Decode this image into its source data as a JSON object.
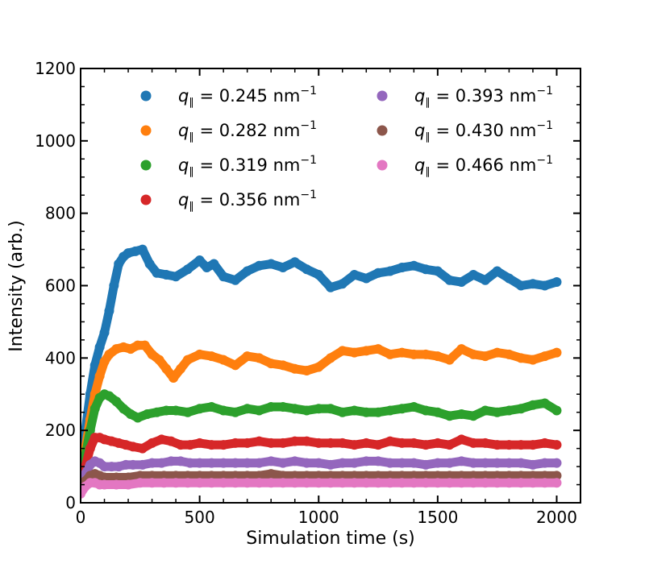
{
  "chart_data": {
    "type": "scatter",
    "title": "",
    "xlabel": "Simulation time (s)",
    "ylabel": "Intensity (arb.)",
    "xlim": [
      0,
      2100
    ],
    "ylim": [
      0,
      1200
    ],
    "xticks": [
      0,
      500,
      1000,
      1500,
      2000
    ],
    "yticks": [
      0,
      200,
      400,
      600,
      800,
      1000,
      1200
    ],
    "legend_position": "top",
    "series": [
      {
        "name": "q_∥ = 0.245 nm⁻¹",
        "q": "0.245",
        "color": "#1f77b4",
        "x": [
          0,
          20,
          40,
          60,
          80,
          100,
          120,
          140,
          160,
          180,
          200,
          230,
          260,
          290,
          320,
          360,
          400,
          450,
          500,
          530,
          560,
          600,
          650,
          700,
          750,
          800,
          850,
          900,
          950,
          1000,
          1050,
          1100,
          1150,
          1200,
          1250,
          1300,
          1350,
          1400,
          1450,
          1500,
          1550,
          1600,
          1650,
          1700,
          1750,
          1800,
          1850,
          1900,
          1950,
          2000
        ],
        "y": [
          80,
          200,
          300,
          380,
          430,
          470,
          530,
          600,
          660,
          680,
          690,
          695,
          700,
          660,
          635,
          630,
          625,
          645,
          670,
          650,
          660,
          625,
          615,
          640,
          655,
          660,
          650,
          665,
          645,
          630,
          595,
          605,
          630,
          620,
          635,
          640,
          650,
          655,
          645,
          640,
          615,
          610,
          630,
          615,
          640,
          620,
          600,
          605,
          600,
          610
        ]
      },
      {
        "name": "q_∥ = 0.282 nm⁻¹",
        "q": "0.282",
        "color": "#ff7f0e",
        "x": [
          0,
          20,
          40,
          60,
          80,
          100,
          120,
          150,
          180,
          210,
          240,
          270,
          300,
          330,
          360,
          390,
          420,
          450,
          500,
          550,
          600,
          650,
          700,
          750,
          800,
          850,
          900,
          950,
          1000,
          1050,
          1100,
          1150,
          1200,
          1250,
          1300,
          1350,
          1400,
          1450,
          1500,
          1550,
          1600,
          1650,
          1700,
          1750,
          1800,
          1850,
          1900,
          1950,
          2000
        ],
        "y": [
          60,
          150,
          230,
          300,
          350,
          390,
          410,
          425,
          430,
          425,
          435,
          435,
          410,
          395,
          370,
          345,
          370,
          395,
          410,
          405,
          395,
          380,
          405,
          400,
          385,
          380,
          370,
          365,
          375,
          400,
          420,
          415,
          420,
          425,
          410,
          415,
          410,
          410,
          405,
          395,
          425,
          410,
          405,
          415,
          410,
          400,
          395,
          405,
          415
        ]
      },
      {
        "name": "q_∥ = 0.319 nm⁻¹",
        "q": "0.319",
        "color": "#2ca02c",
        "x": [
          0,
          20,
          40,
          60,
          80,
          100,
          120,
          150,
          180,
          210,
          240,
          280,
          320,
          360,
          400,
          450,
          500,
          550,
          600,
          650,
          700,
          750,
          800,
          850,
          900,
          950,
          1000,
          1050,
          1100,
          1150,
          1200,
          1250,
          1300,
          1350,
          1400,
          1450,
          1500,
          1550,
          1600,
          1650,
          1700,
          1750,
          1800,
          1850,
          1900,
          1950,
          2000
        ],
        "y": [
          50,
          130,
          200,
          260,
          290,
          300,
          295,
          280,
          260,
          245,
          235,
          245,
          250,
          255,
          255,
          250,
          260,
          265,
          255,
          250,
          260,
          255,
          265,
          265,
          260,
          255,
          260,
          260,
          250,
          255,
          250,
          250,
          255,
          260,
          265,
          255,
          250,
          240,
          245,
          240,
          255,
          250,
          255,
          260,
          270,
          275,
          255
        ]
      },
      {
        "name": "q_∥ = 0.356 nm⁻¹",
        "q": "0.356",
        "color": "#d62728",
        "x": [
          0,
          20,
          40,
          60,
          80,
          100,
          130,
          160,
          190,
          220,
          260,
          300,
          340,
          380,
          420,
          460,
          500,
          550,
          600,
          650,
          700,
          750,
          800,
          850,
          900,
          950,
          1000,
          1050,
          1100,
          1150,
          1200,
          1250,
          1300,
          1350,
          1400,
          1450,
          1500,
          1550,
          1600,
          1650,
          1700,
          1750,
          1800,
          1850,
          1900,
          1950,
          2000
        ],
        "y": [
          40,
          100,
          150,
          180,
          180,
          175,
          170,
          165,
          160,
          155,
          150,
          165,
          175,
          170,
          160,
          160,
          165,
          160,
          160,
          165,
          165,
          170,
          165,
          165,
          170,
          170,
          165,
          165,
          165,
          160,
          165,
          160,
          170,
          165,
          165,
          160,
          165,
          160,
          175,
          165,
          165,
          160,
          160,
          160,
          160,
          165,
          160
        ]
      },
      {
        "name": "q_∥ = 0.393 nm⁻¹",
        "q": "0.393",
        "color": "#9467bd",
        "x": [
          0,
          20,
          40,
          60,
          80,
          100,
          130,
          160,
          190,
          220,
          260,
          300,
          340,
          380,
          420,
          460,
          500,
          550,
          600,
          650,
          700,
          750,
          800,
          850,
          900,
          950,
          1000,
          1050,
          1100,
          1150,
          1200,
          1250,
          1300,
          1350,
          1400,
          1450,
          1500,
          1550,
          1600,
          1650,
          1700,
          1750,
          1800,
          1850,
          1900,
          1950,
          2000
        ],
        "y": [
          35,
          80,
          105,
          115,
          110,
          100,
          100,
          100,
          105,
          105,
          105,
          110,
          110,
          115,
          115,
          110,
          110,
          110,
          110,
          110,
          110,
          110,
          115,
          110,
          115,
          110,
          110,
          105,
          110,
          110,
          115,
          115,
          110,
          110,
          110,
          105,
          110,
          110,
          115,
          110,
          110,
          110,
          110,
          110,
          105,
          110,
          110
        ]
      },
      {
        "name": "q_∥ = 0.430 nm⁻¹",
        "q": "0.430",
        "color": "#8c564b",
        "x": [
          0,
          20,
          40,
          60,
          80,
          100,
          150,
          200,
          250,
          300,
          350,
          400,
          450,
          500,
          550,
          600,
          650,
          700,
          750,
          800,
          850,
          900,
          950,
          1000,
          1050,
          1100,
          1150,
          1200,
          1250,
          1300,
          1350,
          1400,
          1450,
          1500,
          1550,
          1600,
          1650,
          1700,
          1750,
          1800,
          1850,
          1900,
          1950,
          2000
        ],
        "y": [
          30,
          60,
          75,
          80,
          75,
          70,
          70,
          70,
          75,
          75,
          75,
          75,
          75,
          75,
          75,
          75,
          75,
          75,
          75,
          80,
          75,
          75,
          75,
          75,
          75,
          75,
          75,
          75,
          75,
          75,
          75,
          75,
          75,
          75,
          75,
          75,
          75,
          75,
          75,
          75,
          75,
          75,
          75,
          75
        ]
      },
      {
        "name": "q_∥ = 0.466 nm⁻¹",
        "q": "0.466",
        "color": "#e377c2",
        "x": [
          0,
          20,
          40,
          60,
          80,
          100,
          150,
          200,
          250,
          300,
          350,
          400,
          450,
          500,
          550,
          600,
          650,
          700,
          750,
          800,
          850,
          900,
          950,
          1000,
          1050,
          1100,
          1150,
          1200,
          1250,
          1300,
          1350,
          1400,
          1450,
          1500,
          1550,
          1600,
          1650,
          1700,
          1750,
          1800,
          1850,
          1900,
          1950,
          2000
        ],
        "y": [
          25,
          45,
          55,
          55,
          50,
          50,
          50,
          50,
          55,
          55,
          55,
          55,
          55,
          55,
          55,
          55,
          55,
          55,
          55,
          55,
          55,
          55,
          55,
          55,
          55,
          55,
          55,
          55,
          55,
          55,
          55,
          55,
          55,
          55,
          55,
          55,
          55,
          55,
          55,
          55,
          55,
          55,
          55,
          55
        ]
      }
    ]
  }
}
